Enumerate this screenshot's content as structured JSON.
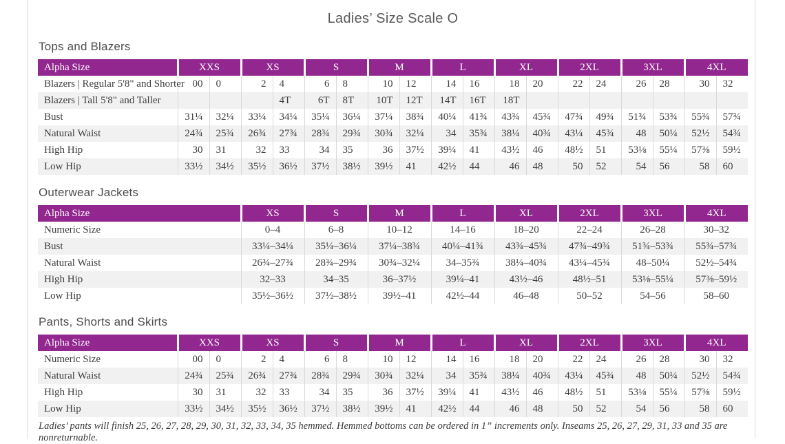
{
  "page": {
    "title": "Ladies’ Size Scale O",
    "footnote": "Ladies’ pants will finish 25, 26, 27, 28, 29, 30, 31, 32, 33, 34, 35 hemmed. Hemmed bottoms can be ordered in 1” increments only. Inseams 25, 26, 27, 29, 31, 33 and 35 are nonreturnable."
  },
  "colors": {
    "header_bg": "#92278F",
    "header_text": "#FFFFFF",
    "row_stripe": "#F1F1F1",
    "grid_line": "#D9D9D9",
    "title_text": "#595959",
    "cell_text": "#3D3D3D"
  },
  "tables": [
    {
      "section_title": "Tops and Blazers",
      "type": "paired",
      "header_label": "Alpha Size",
      "size_groups": [
        "XXS",
        "XS",
        "S",
        "M",
        "L",
        "XL",
        "2XL",
        "3XL",
        "4XL"
      ],
      "rows": [
        {
          "label": "Blazers | Regular 5'8\" and Shorter",
          "values": [
            "00",
            "0",
            "2",
            "4",
            "6",
            "8",
            "10",
            "12",
            "14",
            "16",
            "18",
            "20",
            "22",
            "24",
            "26",
            "28",
            "30",
            "32"
          ]
        },
        {
          "label": "Blazers | Tall 5'8\" and Taller",
          "values": [
            "",
            "",
            "",
            "4T",
            "6T",
            "8T",
            "10T",
            "12T",
            "14T",
            "16T",
            "18T",
            "",
            "",
            "",
            "",
            "",
            "",
            ""
          ]
        },
        {
          "label": "Bust",
          "values": [
            "31¼",
            "32¼",
            "33¼",
            "34¼",
            "35¼",
            "36¼",
            "37¼",
            "38¾",
            "40¼",
            "41¾",
            "43¾",
            "45¾",
            "47¾",
            "49¾",
            "51¾",
            "53¾",
            "55¾",
            "57¾"
          ]
        },
        {
          "label": "Natural Waist",
          "values": [
            "24¾",
            "25¾",
            "26¾",
            "27¾",
            "28¾",
            "29¾",
            "30¾",
            "32¼",
            "34",
            "35¾",
            "38¼",
            "40¾",
            "43¼",
            "45¾",
            "48",
            "50¼",
            "52½",
            "54¾"
          ]
        },
        {
          "label": "High Hip",
          "values": [
            "30",
            "31",
            "32",
            "33",
            "34",
            "35",
            "36",
            "37½",
            "39¼",
            "41",
            "43½",
            "46",
            "48½",
            "51",
            "53⅛",
            "55¼",
            "57⅜",
            "59½"
          ]
        },
        {
          "label": "Low Hip",
          "values": [
            "33½",
            "34½",
            "35½",
            "36½",
            "37½",
            "38½",
            "39½",
            "41",
            "42½",
            "44",
            "46",
            "48",
            "50",
            "52",
            "54",
            "56",
            "58",
            "60"
          ]
        }
      ]
    },
    {
      "section_title": "Outerwear Jackets",
      "type": "single",
      "header_label": "Alpha Size",
      "size_groups": [
        "XS",
        "S",
        "M",
        "L",
        "XL",
        "2XL",
        "3XL",
        "4XL"
      ],
      "rows": [
        {
          "label": "Numeric Size",
          "values": [
            "0–4",
            "6–8",
            "10–12",
            "14–16",
            "18–20",
            "22–24",
            "26–28",
            "30–32"
          ]
        },
        {
          "label": "Bust",
          "values": [
            "33¼–34¼",
            "35¼–36¼",
            "37¼–38¾",
            "40¼–41¾",
            "43¾–45¾",
            "47¾–49¾",
            "51¾–53¾",
            "55¾–57¾"
          ]
        },
        {
          "label": "Natural Waist",
          "values": [
            "26¾–27¾",
            "28¾–29¾",
            "30¾–32¼",
            "34–35¾",
            "38¼–40¾",
            "43¼–45¾",
            "48–50¼",
            "52½–54¾"
          ]
        },
        {
          "label": "High Hip",
          "values": [
            "32–33",
            "34–35",
            "36–37½",
            "39¼–41",
            "43½–46",
            "48½–51",
            "53⅛–55¼",
            "57⅜–59½"
          ]
        },
        {
          "label": "Low Hip",
          "values": [
            "35½–36½",
            "37½–38½",
            "39½–41",
            "42½–44",
            "46–48",
            "50–52",
            "54–56",
            "58–60"
          ]
        }
      ]
    },
    {
      "section_title": "Pants, Shorts and Skirts",
      "type": "paired",
      "header_label": "Alpha Size",
      "size_groups": [
        "XXS",
        "XS",
        "S",
        "M",
        "L",
        "XL",
        "2XL",
        "3XL",
        "4XL"
      ],
      "rows": [
        {
          "label": "Numeric Size",
          "values": [
            "00",
            "0",
            "2",
            "4",
            "6",
            "8",
            "10",
            "12",
            "14",
            "16",
            "18",
            "20",
            "22",
            "24",
            "26",
            "28",
            "30",
            "32"
          ]
        },
        {
          "label": "Natural Waist",
          "values": [
            "24¾",
            "25¾",
            "26¾",
            "27¾",
            "28¾",
            "29¾",
            "30¾",
            "32¼",
            "34",
            "35¾",
            "38¼",
            "40¾",
            "43¼",
            "45¾",
            "48",
            "50¼",
            "52½",
            "54¾"
          ]
        },
        {
          "label": "High Hip",
          "values": [
            "30",
            "31",
            "32",
            "33",
            "34",
            "35",
            "36",
            "37½",
            "39¼",
            "41",
            "43½",
            "46",
            "48½",
            "51",
            "53⅛",
            "55¼",
            "57⅜",
            "59½"
          ]
        },
        {
          "label": "Low Hip",
          "values": [
            "33½",
            "34½",
            "35½",
            "36½",
            "37½",
            "38½",
            "39½",
            "41",
            "42½",
            "44",
            "46",
            "48",
            "50",
            "52",
            "54",
            "56",
            "58",
            "60"
          ]
        }
      ]
    }
  ]
}
